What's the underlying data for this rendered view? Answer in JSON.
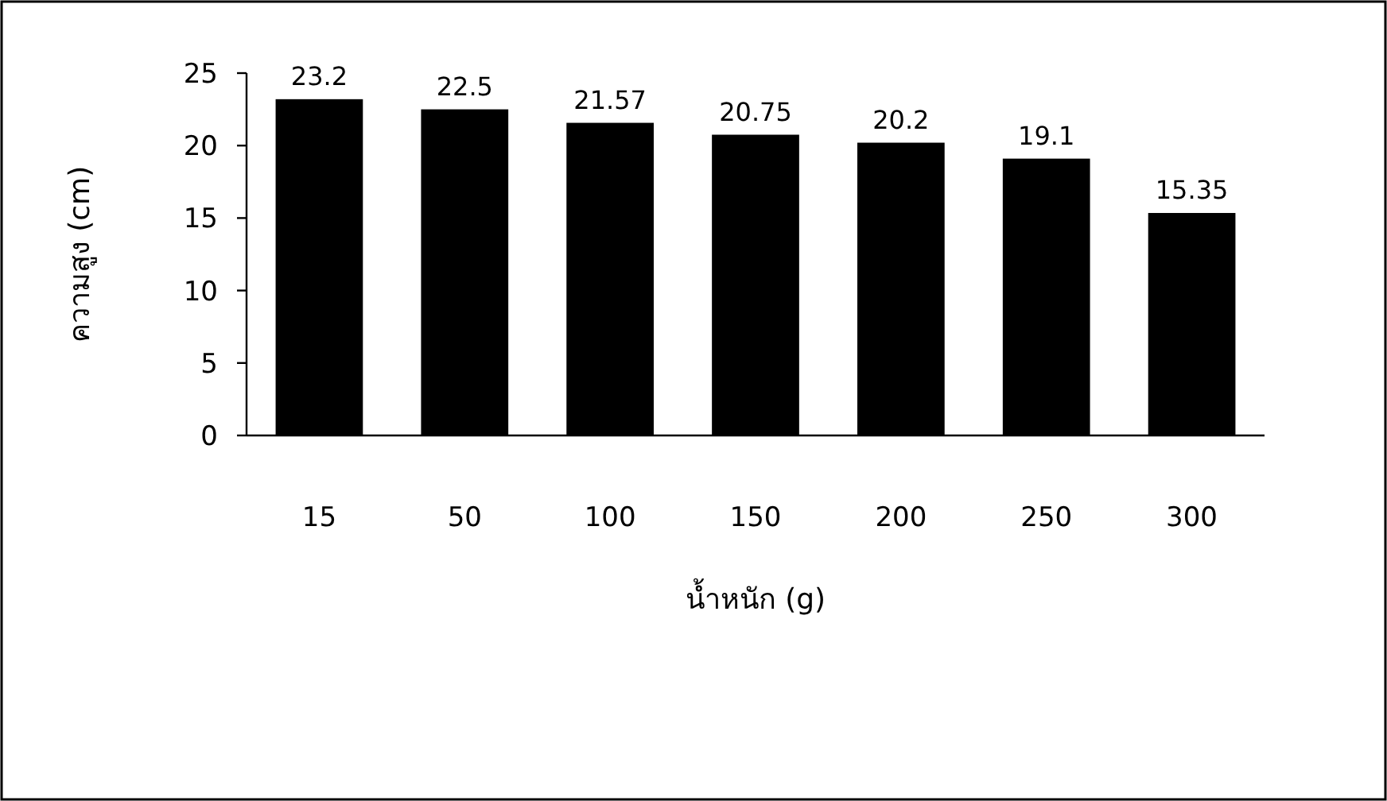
{
  "chart_data": {
    "type": "bar",
    "categories": [
      "15",
      "50",
      "100",
      "150",
      "200",
      "250",
      "300"
    ],
    "values": [
      23.2,
      22.5,
      21.57,
      20.75,
      20.2,
      19.1,
      15.35
    ],
    "color": "#000000",
    "xlabel": "น้ำหนัก (g)",
    "ylabel": "ความสูง (cm)",
    "ylim": [
      0,
      25
    ],
    "yticks": [
      0,
      5,
      10,
      15,
      20,
      25
    ],
    "data_labels": true
  }
}
